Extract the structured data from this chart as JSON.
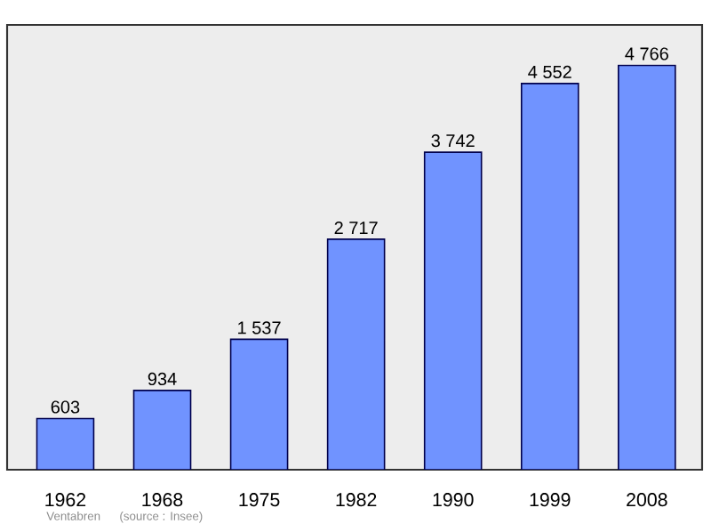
{
  "chart_data": {
    "type": "bar",
    "categories": [
      "1962",
      "1968",
      "1975",
      "1982",
      "1990",
      "1999",
      "2008"
    ],
    "values": [
      603,
      934,
      1537,
      2717,
      3742,
      4552,
      4766
    ],
    "value_labels": [
      "603",
      "934",
      "1 537",
      "2 717",
      "3 742",
      "4 552",
      "4 766"
    ],
    "color": "#7093ff",
    "tick_labels": "x",
    "annotations": [
      "Ventabren",
      "(source : Insee)"
    ]
  }
}
